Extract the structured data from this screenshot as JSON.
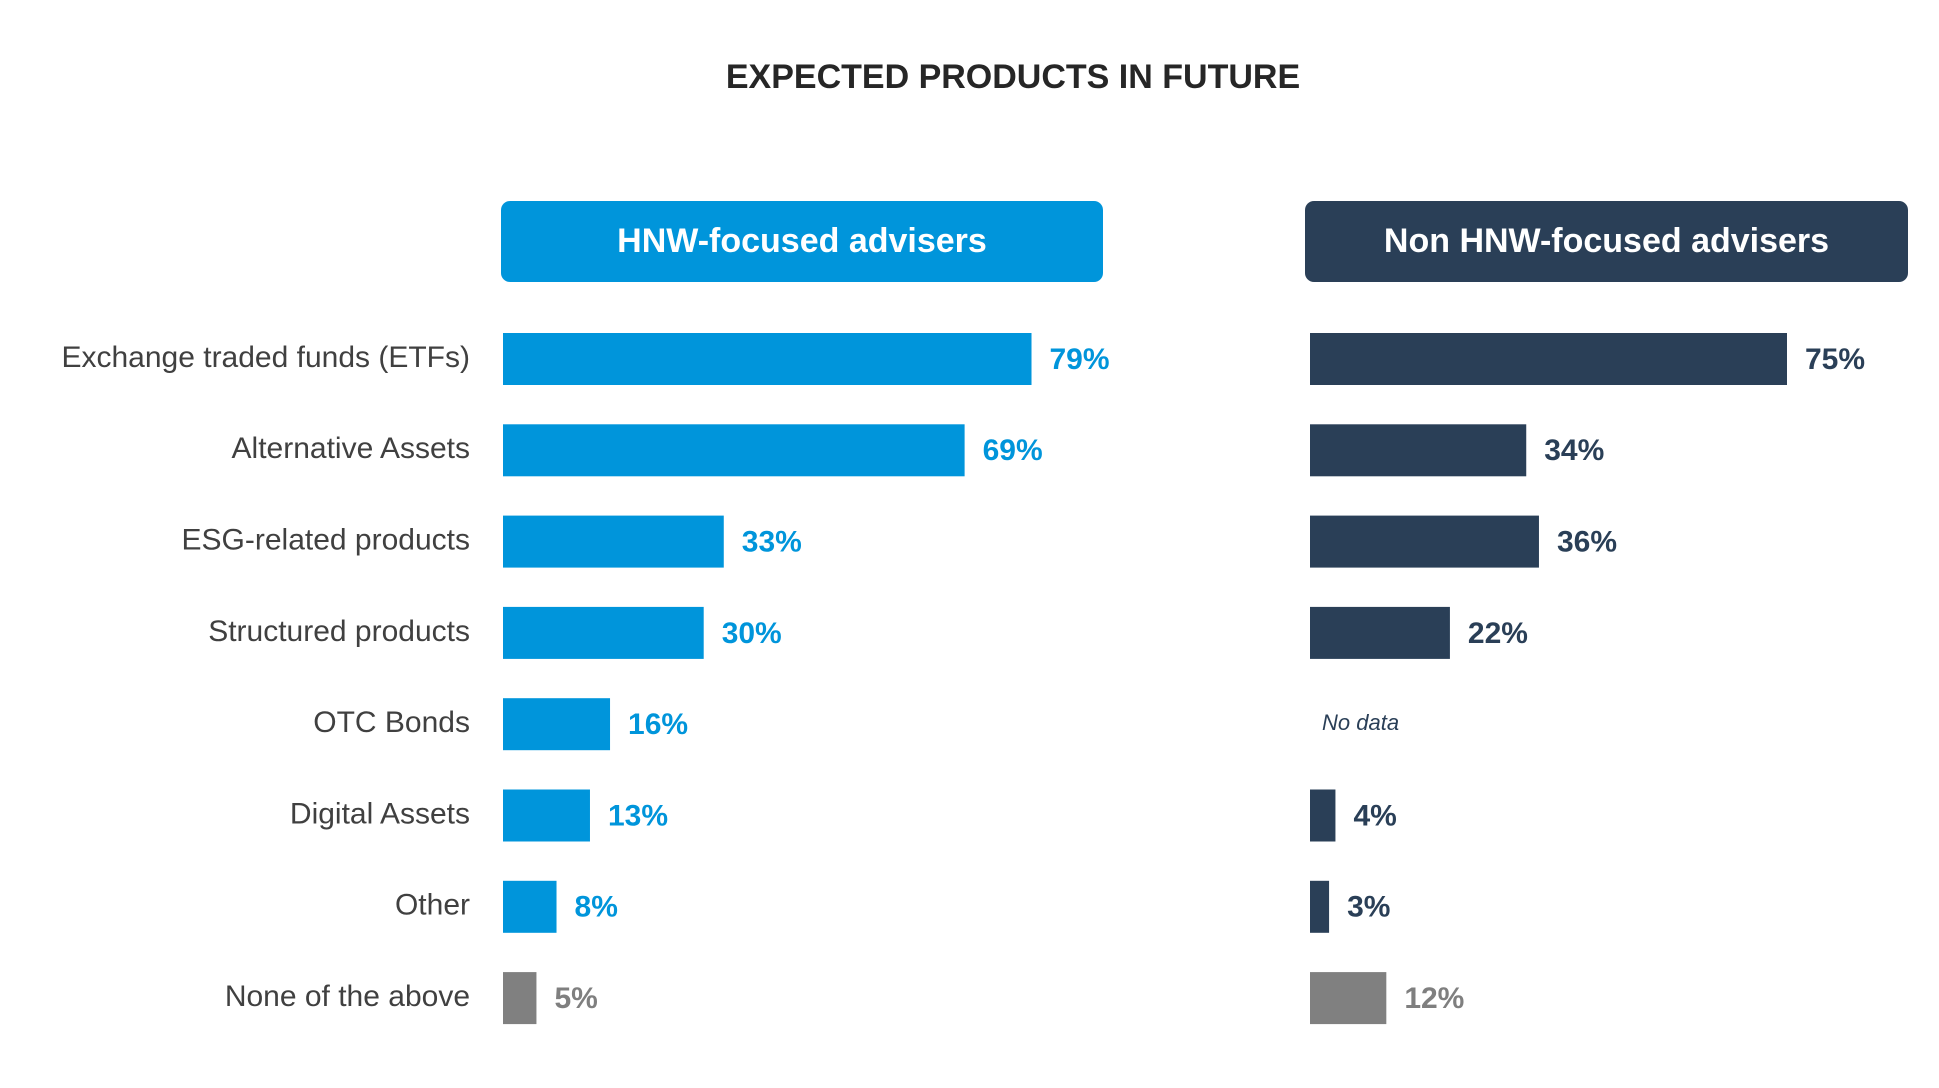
{
  "chart_data": {
    "type": "bar",
    "orientation": "horizontal",
    "title": "EXPECTED PRODUCTS IN FUTURE",
    "categories": [
      "Exchange traded funds (ETFs)",
      "Alternative Assets",
      "ESG-related products",
      "Structured products",
      "OTC Bonds",
      "Digital Assets",
      "Other",
      "None of the above"
    ],
    "missing_label": "No data",
    "series": [
      {
        "name": "HNW-focused advisers",
        "color": "#0095db",
        "colors": [
          "#0095db",
          "#0095db",
          "#0095db",
          "#0095db",
          "#0095db",
          "#0095db",
          "#0095db",
          "#808080"
        ],
        "values": [
          79,
          69,
          33,
          30,
          16,
          13,
          8,
          5
        ],
        "value_labels": [
          "79%",
          "69%",
          "33%",
          "30%",
          "16%",
          "13%",
          "8%",
          "5%"
        ]
      },
      {
        "name": "Non HNW-focused advisers",
        "color": "#2a3f57",
        "colors": [
          "#2a3f57",
          "#2a3f57",
          "#2a3f57",
          "#2a3f57",
          "#2a3f57",
          "#2a3f57",
          "#2a3f57",
          "#808080"
        ],
        "values": [
          75,
          34,
          36,
          22,
          null,
          4,
          3,
          12
        ],
        "value_labels": [
          "75%",
          "34%",
          "36%",
          "22%",
          null,
          "4%",
          "3%",
          "12%"
        ]
      }
    ]
  }
}
